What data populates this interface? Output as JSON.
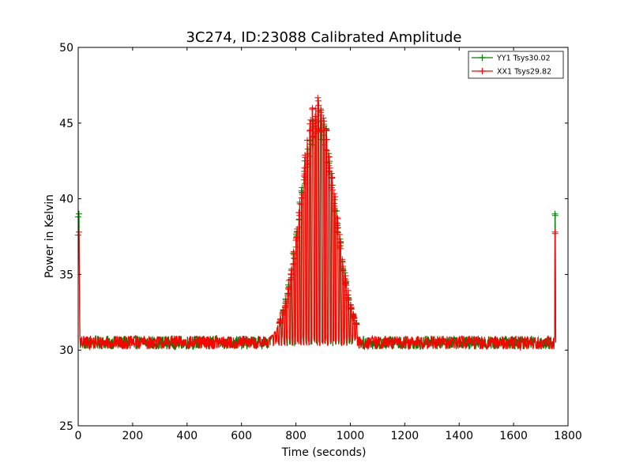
{
  "chart_data": {
    "type": "line",
    "title": "3C274, ID:23088 Calibrated Amplitude",
    "xlabel": "Time (seconds)",
    "ylabel": "Power in Kelvin",
    "xlim": [
      0,
      1800
    ],
    "ylim": [
      25,
      50
    ],
    "x_ticks": [
      0,
      200,
      400,
      600,
      800,
      1000,
      1200,
      1400,
      1600,
      1800
    ],
    "y_ticks": [
      25,
      30,
      35,
      40,
      45,
      50
    ],
    "grid": false,
    "legend_position": "top-right",
    "baseline": 30.5,
    "time_end": 1755,
    "series": [
      {
        "name": "YY1 Tsys30.02",
        "color": "#008000",
        "marker": "+",
        "start_spike": {
          "x": 3,
          "y": 39.0
        },
        "end_spike": {
          "x": 1752,
          "y": 39.0
        },
        "scan_peak": {
          "x": 880,
          "y": 46.5
        },
        "scan_range": [
          700,
          1030
        ]
      },
      {
        "name": "XX1 Tsys29.82",
        "color": "#ff0000",
        "marker": "+",
        "start_spike": {
          "x": 3,
          "y": 37.8
        },
        "end_spike": {
          "x": 1752,
          "y": 37.8
        },
        "scan_peak": {
          "x": 880,
          "y": 46.8
        },
        "scan_range": [
          700,
          1030
        ]
      }
    ]
  }
}
